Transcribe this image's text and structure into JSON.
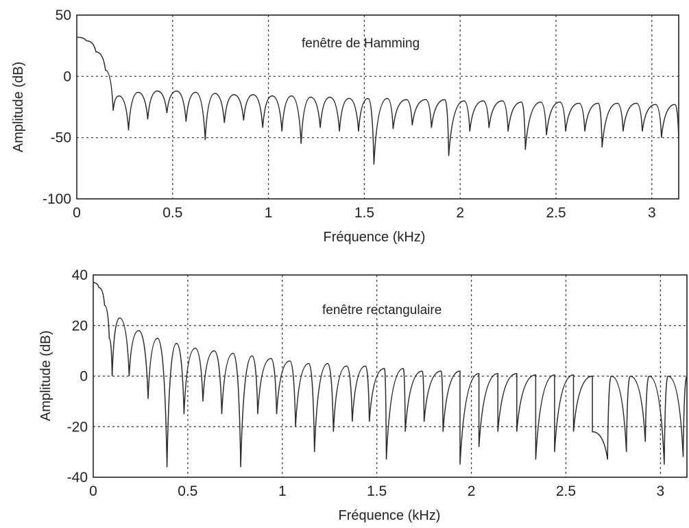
{
  "chart_data": [
    {
      "type": "line",
      "annotation": "fenêtre de Hamming",
      "xlabel": "Fréquence (kHz)",
      "ylabel": "Amplitude (dB)",
      "xlim": [
        0,
        3.14
      ],
      "ylim": [
        -100,
        50
      ],
      "xticks": [
        "0",
        "0.5",
        "1",
        "1.5",
        "2",
        "2.5",
        "3"
      ],
      "yticks": [
        "50",
        "0",
        "-50",
        "-100"
      ],
      "grid": true,
      "series": [
        {
          "line_color": "#2a2a2a",
          "mainlobe": [
            [
              0,
              32
            ],
            [
              0.05,
              29
            ],
            [
              0.1,
              20
            ],
            [
              0.15,
              5
            ],
            [
              0.19,
              -28
            ]
          ],
          "sidelobe_peaks": [
            [
              0.22,
              -16
            ],
            [
              0.32,
              -13
            ],
            [
              0.42,
              -12
            ],
            [
              0.52,
              -12
            ],
            [
              0.62,
              -13
            ],
            [
              0.72,
              -14
            ],
            [
              0.82,
              -15
            ],
            [
              0.92,
              -15
            ],
            [
              1.02,
              -16
            ],
            [
              1.12,
              -16
            ],
            [
              1.22,
              -17
            ],
            [
              1.32,
              -17
            ],
            [
              1.42,
              -18
            ],
            [
              1.52,
              -18
            ],
            [
              1.62,
              -18
            ],
            [
              1.72,
              -19
            ],
            [
              1.82,
              -19
            ],
            [
              1.92,
              -19
            ],
            [
              2.02,
              -20
            ],
            [
              2.12,
              -20
            ],
            [
              2.22,
              -20
            ],
            [
              2.32,
              -21
            ],
            [
              2.42,
              -21
            ],
            [
              2.52,
              -21
            ],
            [
              2.62,
              -22
            ],
            [
              2.72,
              -22
            ],
            [
              2.82,
              -22
            ],
            [
              2.92,
              -22
            ],
            [
              3.02,
              -23
            ],
            [
              3.12,
              -23
            ]
          ],
          "nulls": [
            [
              0.27,
              -44
            ],
            [
              0.37,
              -35
            ],
            [
              0.47,
              -30
            ],
            [
              0.57,
              -37
            ],
            [
              0.67,
              -52
            ],
            [
              0.77,
              -38
            ],
            [
              0.87,
              -36
            ],
            [
              0.97,
              -42
            ],
            [
              1.07,
              -45
            ],
            [
              1.17,
              -55
            ],
            [
              1.27,
              -42
            ],
            [
              1.37,
              -45
            ],
            [
              1.47,
              -45
            ],
            [
              1.55,
              -72
            ],
            [
              1.65,
              -43
            ],
            [
              1.75,
              -40
            ],
            [
              1.85,
              -42
            ],
            [
              1.94,
              -65
            ],
            [
              2.05,
              -45
            ],
            [
              2.15,
              -42
            ],
            [
              2.25,
              -45
            ],
            [
              2.34,
              -60
            ],
            [
              2.45,
              -48
            ],
            [
              2.55,
              -45
            ],
            [
              2.65,
              -45
            ],
            [
              2.74,
              -58
            ],
            [
              2.85,
              -45
            ],
            [
              2.95,
              -45
            ],
            [
              3.05,
              -50
            ],
            [
              3.14,
              -52
            ]
          ]
        }
      ]
    },
    {
      "type": "line",
      "annotation": "fenêtre rectangulaire",
      "xlabel": "Fréquence (kHz)",
      "ylabel": "Amplitude (dB)",
      "xlim": [
        0,
        3.14
      ],
      "ylim": [
        -40,
        40
      ],
      "xticks": [
        "0",
        "0.5",
        "1",
        "1.5",
        "2",
        "2.5",
        "3"
      ],
      "yticks": [
        "40",
        "20",
        "0",
        "-20",
        "-40"
      ],
      "grid": true,
      "series": [
        {
          "line_color": "#2a2a2a",
          "mainlobe": [
            [
              0,
              37
            ],
            [
              0.03,
              35
            ],
            [
              0.06,
              28
            ],
            [
              0.085,
              15
            ],
            [
              0.1,
              0
            ]
          ],
          "sidelobe_peaks": [
            [
              0.14,
              23
            ],
            [
              0.24,
              18
            ],
            [
              0.34,
              15
            ],
            [
              0.44,
              13
            ],
            [
              0.54,
              11
            ],
            [
              0.64,
              10
            ],
            [
              0.74,
              9
            ],
            [
              0.84,
              8
            ],
            [
              0.94,
              7
            ],
            [
              1.04,
              6
            ],
            [
              1.14,
              5
            ],
            [
              1.24,
              5
            ],
            [
              1.34,
              4
            ],
            [
              1.44,
              4
            ],
            [
              1.54,
              3
            ],
            [
              1.64,
              3
            ],
            [
              1.74,
              2
            ],
            [
              1.84,
              2
            ],
            [
              1.94,
              2
            ],
            [
              2.04,
              1
            ],
            [
              2.14,
              1
            ],
            [
              2.24,
              1
            ],
            [
              2.34,
              0.5
            ],
            [
              2.44,
              0.5
            ],
            [
              2.54,
              0.5
            ],
            [
              2.64,
              0
            ],
            [
              2.74,
              0
            ],
            [
              2.84,
              0
            ],
            [
              2.94,
              0
            ],
            [
              3.04,
              0
            ],
            [
              3.14,
              0
            ]
          ],
          "nulls": [
            [
              0.19,
              0
            ],
            [
              0.29,
              -9
            ],
            [
              0.39,
              -36
            ],
            [
              0.48,
              -15
            ],
            [
              0.58,
              -10
            ],
            [
              0.68,
              -15
            ],
            [
              0.78,
              -36
            ],
            [
              0.87,
              -15
            ],
            [
              0.97,
              -15
            ],
            [
              1.07,
              -20
            ],
            [
              1.17,
              -30
            ],
            [
              1.27,
              -22
            ],
            [
              1.37,
              -18
            ],
            [
              1.46,
              -18
            ],
            [
              1.55,
              -33
            ],
            [
              1.65,
              -22
            ],
            [
              1.75,
              -18
            ],
            [
              1.85,
              -22
            ],
            [
              1.94,
              -35
            ],
            [
              2.04,
              -28
            ],
            [
              2.14,
              -22
            ],
            [
              2.24,
              -22
            ],
            [
              2.34,
              -33
            ],
            [
              2.44,
              -30
            ],
            [
              2.54,
              -22
            ],
            [
              2.64,
              -22
            ],
            [
              2.72,
              -33
            ],
            [
              2.82,
              -30
            ],
            [
              2.92,
              -26
            ],
            [
              3.02,
              -35
            ],
            [
              3.12,
              -32
            ]
          ]
        }
      ]
    }
  ]
}
